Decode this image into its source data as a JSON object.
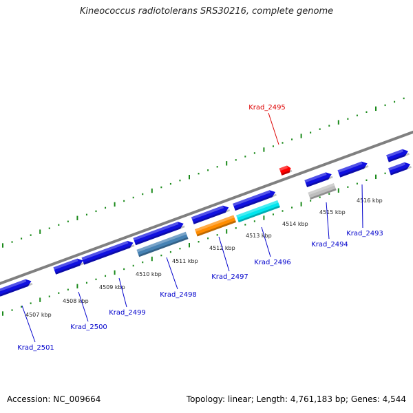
{
  "title": "Kineococcus radiotolerans SRS30216, complete genome",
  "footer": {
    "accession": "Accession: NC_009664",
    "topology": "Topology: linear; Length: 4,761,183 bp; Genes: 4,544"
  },
  "colors": {
    "forward_gene": "#1010e0",
    "reverse_gene_steelblue": "#4682b4",
    "reverse_gene_orange": "#ff8c00",
    "reverse_gene_cyan": "#00e5ee",
    "reverse_gene_gray": "#bebebe",
    "highlight_gene": "#ff0000",
    "backbone": "#808080",
    "ticks": "#1a8a1a",
    "gene_label": "#0000cc",
    "highlight_label": "#dd0000"
  },
  "axis": {
    "unit": "kbp",
    "ticks": [
      4507,
      4508,
      4509,
      4510,
      4511,
      4512,
      4513,
      4514,
      4515,
      4516
    ],
    "tick_labels": [
      "4507 kbp",
      "4508 kbp",
      "4509 kbp",
      "4510 kbp",
      "4511 kbp",
      "4512 kbp",
      "4513 kbp",
      "4514 kbp",
      "4515 kbp",
      "4516 kbp"
    ]
  },
  "genes": {
    "labeled": [
      {
        "name": "Krad_2495",
        "highlight": true
      },
      {
        "name": "Krad_2493",
        "highlight": false
      },
      {
        "name": "Krad_2494",
        "highlight": false
      },
      {
        "name": "Krad_2496",
        "highlight": false
      },
      {
        "name": "Krad_2497",
        "highlight": false
      },
      {
        "name": "Krad_2498",
        "highlight": false
      },
      {
        "name": "Krad_2499",
        "highlight": false
      },
      {
        "name": "Krad_2500",
        "highlight": false
      },
      {
        "name": "Krad_2501",
        "highlight": false
      }
    ]
  }
}
